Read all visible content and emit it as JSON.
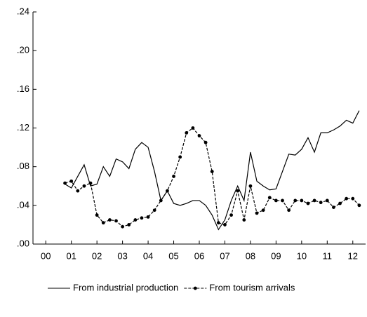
{
  "chart_data": {
    "type": "line",
    "x": [
      1.25,
      1.5,
      1.75,
      2.0,
      2.25,
      2.5,
      2.75,
      3.0,
      3.25,
      3.5,
      3.75,
      4.0,
      4.25,
      4.5,
      4.75,
      5.0,
      5.25,
      5.5,
      5.75,
      6.0,
      6.25,
      6.5,
      6.75,
      7.0,
      7.25,
      7.5,
      7.75,
      8.0,
      8.25,
      8.5,
      8.75,
      9.0,
      9.25,
      9.5,
      9.75,
      10.0,
      10.25,
      10.5,
      10.75,
      11.0,
      11.25,
      11.5,
      11.75,
      12.0,
      12.25,
      12.5,
      12.75
    ],
    "series": [
      {
        "name": "From industrial production",
        "color": "#000000",
        "line_style": "solid",
        "markers": false,
        "values": [
          0.062,
          0.058,
          0.07,
          0.082,
          0.06,
          0.062,
          0.08,
          0.07,
          0.088,
          0.085,
          0.078,
          0.098,
          0.105,
          0.1,
          0.075,
          0.045,
          0.055,
          0.042,
          0.04,
          0.042,
          0.045,
          0.045,
          0.04,
          0.03,
          0.015,
          0.025,
          0.045,
          0.06,
          0.045,
          0.095,
          0.065,
          0.06,
          0.056,
          0.057,
          0.075,
          0.093,
          0.092,
          0.098,
          0.11,
          0.095,
          0.115,
          0.115,
          0.118,
          0.122,
          0.128,
          0.125,
          0.138
        ]
      },
      {
        "name": "From tourism arrivals",
        "color": "#000000",
        "line_style": "dashed",
        "markers": true,
        "values": [
          0.063,
          0.065,
          0.055,
          0.06,
          0.063,
          0.03,
          0.022,
          0.025,
          0.024,
          0.018,
          0.02,
          0.025,
          0.027,
          0.028,
          0.035,
          0.045,
          0.055,
          0.07,
          0.09,
          0.115,
          0.12,
          0.112,
          0.105,
          0.075,
          0.022,
          0.02,
          0.03,
          0.055,
          0.025,
          0.06,
          0.032,
          0.035,
          0.048,
          0.045,
          0.045,
          0.035,
          0.045,
          0.045,
          0.042,
          0.045,
          0.043,
          0.045,
          0.038,
          0.042,
          0.047,
          0.047,
          0.04
        ]
      }
    ],
    "xlim": [
      0,
      13
    ],
    "xticks": [
      {
        "value": 0.5,
        "label": "00"
      },
      {
        "value": 1.5,
        "label": "01"
      },
      {
        "value": 2.5,
        "label": "02"
      },
      {
        "value": 3.5,
        "label": "03"
      },
      {
        "value": 4.5,
        "label": "04"
      },
      {
        "value": 5.5,
        "label": "05"
      },
      {
        "value": 6.5,
        "label": "06"
      },
      {
        "value": 7.5,
        "label": "07"
      },
      {
        "value": 8.5,
        "label": "08"
      },
      {
        "value": 9.5,
        "label": "09"
      },
      {
        "value": 10.5,
        "label": "10"
      },
      {
        "value": 11.5,
        "label": "11"
      },
      {
        "value": 12.5,
        "label": "12"
      }
    ],
    "ylim": [
      0,
      0.24
    ],
    "yticks": [
      {
        "value": 0,
        "label": ".00"
      },
      {
        "value": 0.04,
        "label": ".04"
      },
      {
        "value": 0.08,
        "label": ".08"
      },
      {
        "value": 0.12,
        "label": ".12"
      },
      {
        "value": 0.16,
        "label": ".16"
      },
      {
        "value": 0.2,
        "label": ".20"
      },
      {
        "value": 0.24,
        "label": ".24"
      }
    ],
    "grid": false,
    "legend": "bottom"
  }
}
